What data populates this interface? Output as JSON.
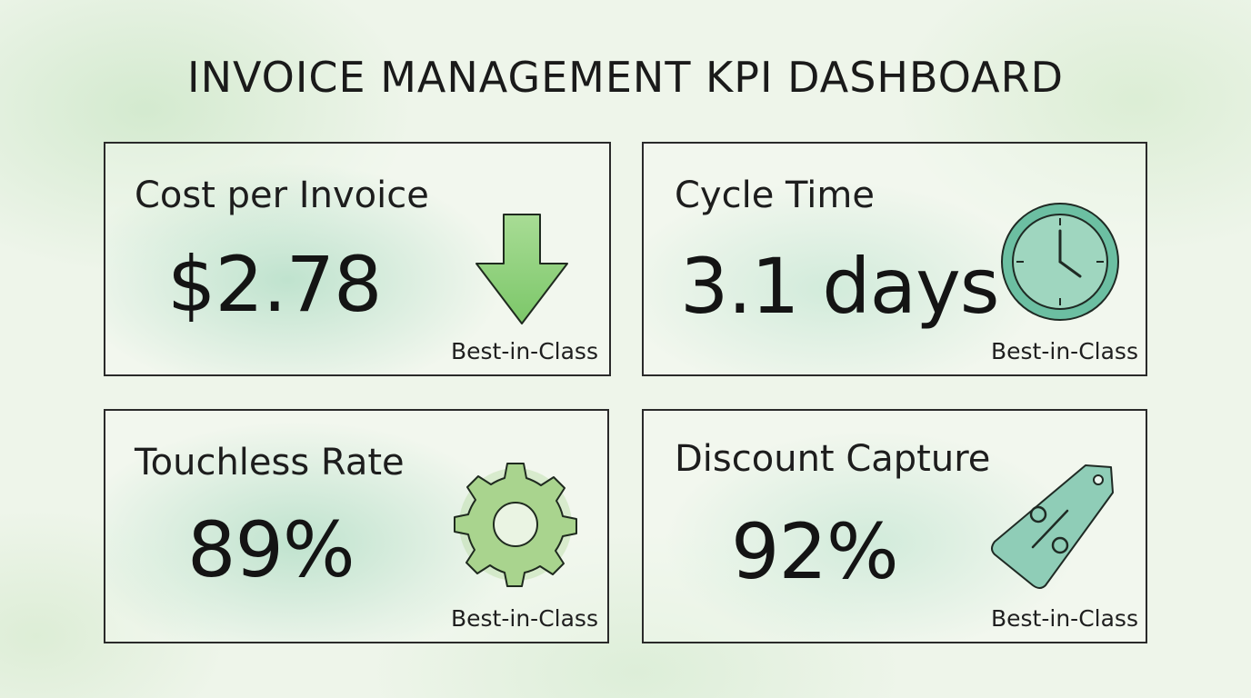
{
  "dashboard": {
    "title": "INVOICE MANAGEMENT KPI DASHBOARD"
  },
  "cards": [
    {
      "label": "Cost per Invoice",
      "value": "$2.78",
      "badge": "Best-in-Class",
      "icon": "down-arrow-icon"
    },
    {
      "label": "Cycle Time",
      "value": "3.1 days",
      "badge": "Best-in-Class",
      "icon": "clock-icon"
    },
    {
      "label": "Touchless Rate",
      "value": "89%",
      "badge": "Best-in-Class",
      "icon": "gear-icon"
    },
    {
      "label": "Discount Capture",
      "value": "92%",
      "badge": "Best-in-Class",
      "icon": "percent-tag-icon"
    }
  ],
  "colors": {
    "background": "#eef5ea",
    "arrow_green": "#8fd07e",
    "clock_teal": "#6cbfa2",
    "gear_green": "#a9d48e",
    "tag_teal": "#8fcdb7",
    "border": "#2a2a2a"
  }
}
